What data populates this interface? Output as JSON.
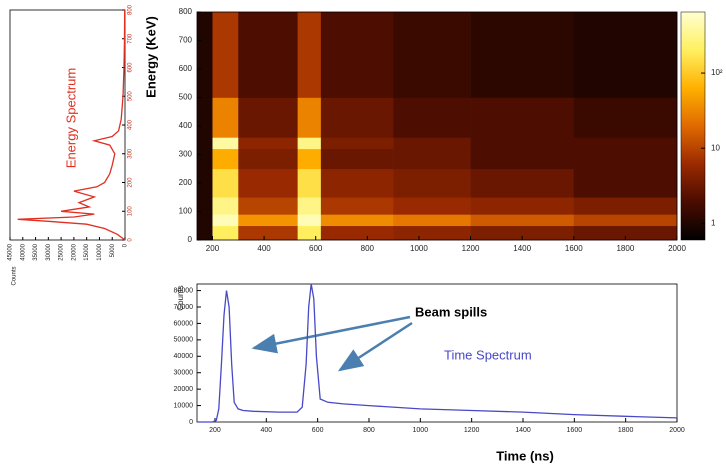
{
  "chart_data": [
    {
      "type": "heatmap",
      "y_label": "Energy (KeV)",
      "x_edges": [
        140,
        200,
        300,
        530,
        620,
        900,
        1200,
        1600,
        2000
      ],
      "y_edges": [
        0,
        50,
        90,
        150,
        250,
        320,
        360,
        500,
        800
      ],
      "z": [
        [
          1,
          200,
          8,
          200,
          6,
          5,
          4,
          3
        ],
        [
          1,
          500,
          40,
          500,
          35,
          25,
          15,
          10
        ],
        [
          1,
          300,
          10,
          300,
          8,
          6,
          5,
          4
        ],
        [
          1,
          150,
          6,
          150,
          5,
          4,
          3,
          2
        ],
        [
          1,
          60,
          4,
          60,
          3,
          3,
          2,
          2
        ],
        [
          1,
          400,
          5,
          300,
          4,
          3,
          2,
          2
        ],
        [
          1,
          30,
          3,
          30,
          3,
          2,
          2,
          1.5
        ],
        [
          1,
          8,
          2,
          8,
          2,
          1.5,
          1.2,
          1
        ]
      ],
      "xlim": [
        140,
        2000
      ],
      "ylim": [
        0,
        800
      ],
      "xticks": [
        200,
        400,
        600,
        800,
        1000,
        1200,
        1400,
        1600,
        1800,
        2000
      ],
      "yticks": [
        0,
        100,
        200,
        300,
        400,
        500,
        600,
        700,
        800
      ],
      "zscale": "log",
      "zlim": [
        0.6,
        650
      ],
      "zticks": [
        1,
        10,
        {
          "value": 100,
          "label": "10²"
        }
      ],
      "colorscale": [
        "#000000",
        "#4a0c00",
        "#9a2a00",
        "#e06a00",
        "#ffb000",
        "#fff060",
        "#ffffd0"
      ]
    },
    {
      "type": "line",
      "orientation": "rotated",
      "title": "Energy Spectrum",
      "y_label": "Counts",
      "color": "#e03020",
      "x": [
        0,
        20,
        40,
        55,
        65,
        72,
        80,
        90,
        100,
        115,
        130,
        150,
        170,
        185,
        200,
        230,
        260,
        300,
        330,
        345,
        360,
        380,
        420,
        500,
        600,
        700,
        800
      ],
      "values": [
        0,
        3000,
        8000,
        15000,
        30000,
        42000,
        20000,
        12000,
        25000,
        14000,
        18000,
        12000,
        20000,
        11000,
        8000,
        6000,
        5000,
        4000,
        6000,
        12000,
        5000,
        2500,
        1500,
        800,
        400,
        200,
        100
      ],
      "xlim": [
        0,
        800
      ],
      "ylim": [
        0,
        45000
      ],
      "xticks": [
        0,
        100,
        200,
        300,
        400,
        500,
        600,
        700,
        800
      ],
      "yticks": [
        0,
        5000,
        10000,
        15000,
        20000,
        25000,
        30000,
        35000,
        40000,
        45000
      ]
    },
    {
      "type": "line",
      "orientation": "vertical",
      "title": "Time Spectrum",
      "y_label": "Counts",
      "x_label": "Time (ns)",
      "color": "#4848c8",
      "annotations": [
        "Beam spills"
      ],
      "x": [
        130,
        190,
        205,
        215,
        225,
        235,
        245,
        255,
        265,
        275,
        290,
        310,
        350,
        450,
        520,
        540,
        555,
        565,
        575,
        585,
        595,
        610,
        640,
        700,
        800,
        1000,
        1200,
        1400,
        1600,
        1800,
        2000
      ],
      "values": [
        0,
        0,
        1000,
        8000,
        35000,
        65000,
        80000,
        70000,
        35000,
        12000,
        8000,
        7000,
        6500,
        6000,
        6000,
        9000,
        35000,
        70000,
        84000,
        75000,
        40000,
        14000,
        12000,
        11000,
        10000,
        8000,
        7000,
        6000,
        4500,
        3500,
        2500
      ],
      "xlim": [
        130,
        2000
      ],
      "ylim": [
        0,
        84000
      ],
      "xticks": [
        200,
        400,
        600,
        800,
        1000,
        1200,
        1400,
        1600,
        1800,
        2000
      ],
      "yticks": [
        0,
        10000,
        20000,
        30000,
        40000,
        50000,
        60000,
        70000,
        80000
      ]
    }
  ]
}
